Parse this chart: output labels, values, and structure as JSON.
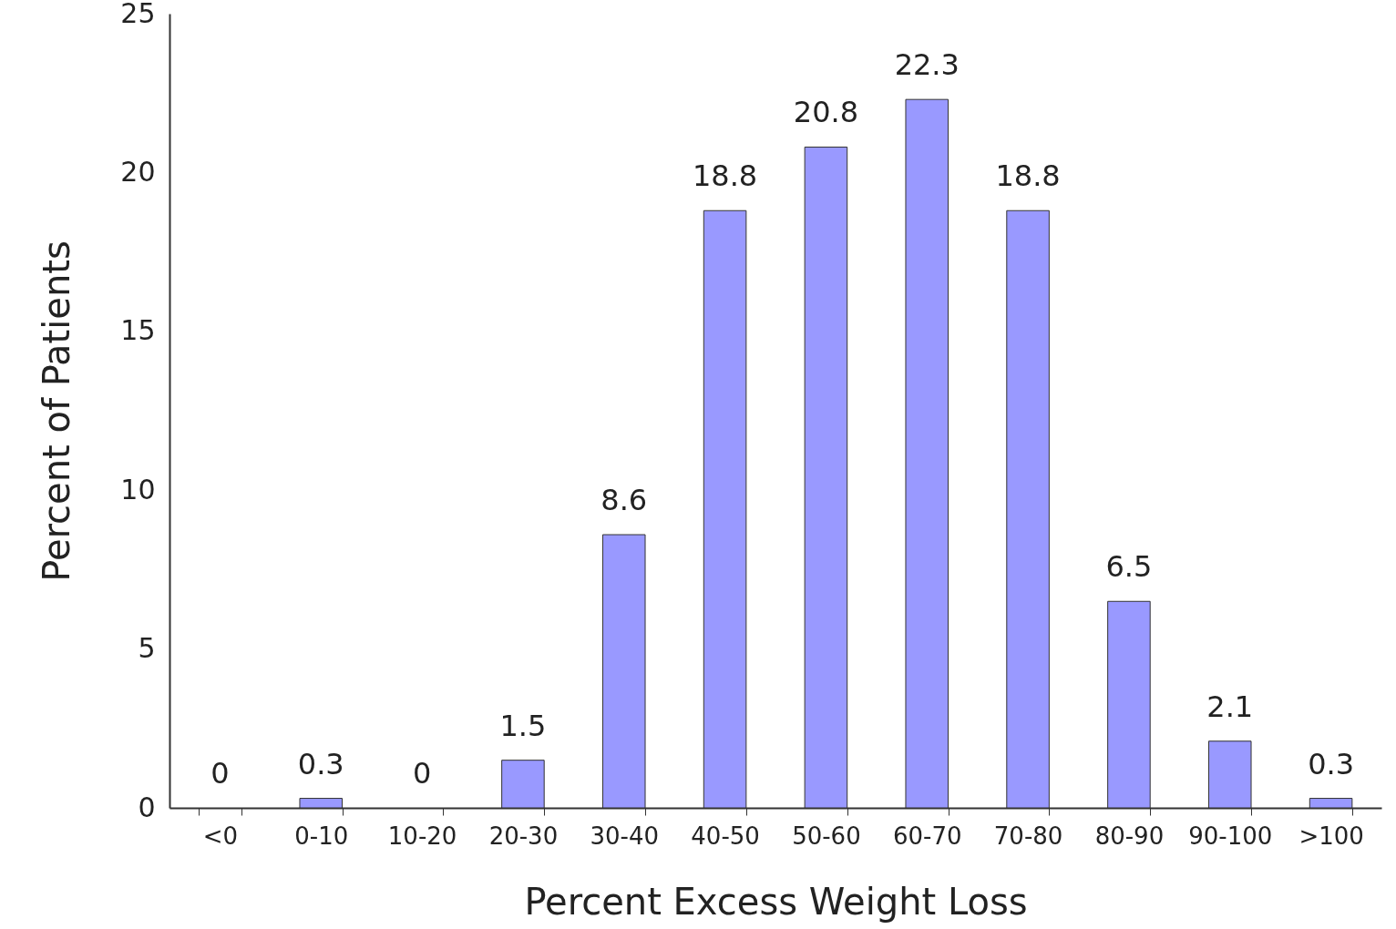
{
  "chart_data": {
    "type": "bar",
    "xlabel": "Percent Excess Weight Loss",
    "ylabel": "Percent of Patients",
    "categories": [
      "<0",
      "0-10",
      "10-20",
      "20-30",
      "30-40",
      "40-50",
      "50-60",
      "60-70",
      "70-80",
      "80-90",
      "90-100",
      ">100"
    ],
    "values": [
      0,
      0.3,
      0,
      1.5,
      8.6,
      18.8,
      20.8,
      22.3,
      18.8,
      6.5,
      2.1,
      0.3
    ],
    "color": "#9999ff",
    "ylim": [
      0,
      25
    ],
    "yticks": [
      0,
      5,
      10,
      15,
      20,
      25
    ],
    "data_labels": true
  }
}
